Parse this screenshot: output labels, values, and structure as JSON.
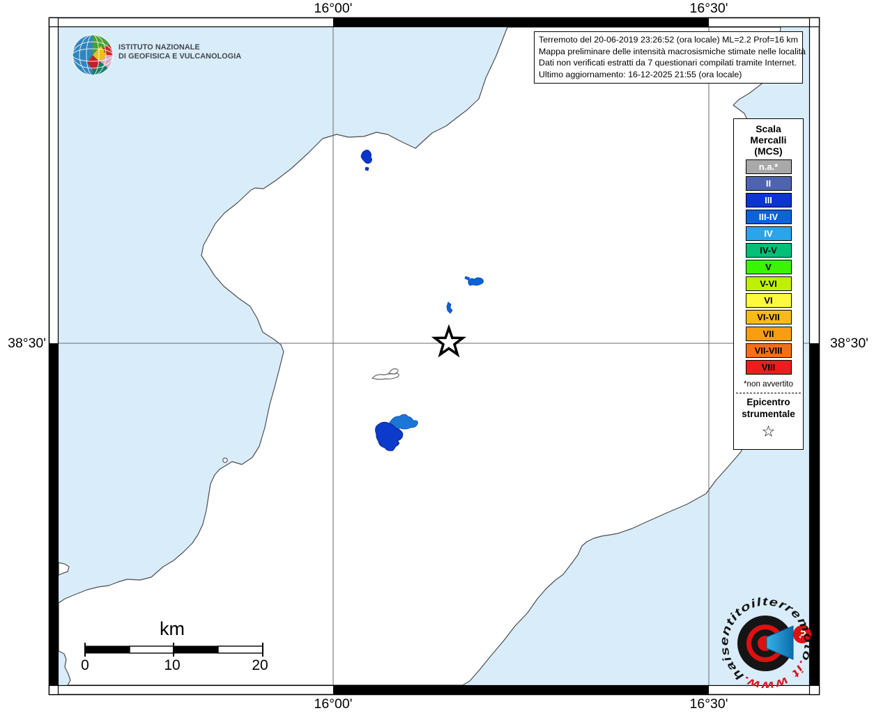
{
  "info_box": {
    "lines": [
      "Terremoto del 20-06-2019 23:26:52 (ora locale) ML=2.2 Prof=16 km",
      "Mappa preliminare delle intensità macrosismiche stimate nelle località",
      "Dati non verificati estratti da 7 questionari compilati tramite Internet.",
      "Ultimo aggiornamento: 16-12-2025 21:55 (ora locale)"
    ]
  },
  "axis_labels": {
    "top_left": "16°00'",
    "top_right": "16°30'",
    "bottom_left": "16°00'",
    "bottom_right": "16°30'",
    "left": "38°30'",
    "right": "38°30'"
  },
  "ingv_logo": {
    "line1": "ISTITUTO NAZIONALE",
    "line2": "DI GEOFISICA E VULCANOLOGIA"
  },
  "legend": {
    "title_lines": [
      "Scala",
      "Mercalli",
      "(MCS)"
    ],
    "items": [
      {
        "label": "n.a.*",
        "color": "#a9a9a9",
        "text": "#ffffff"
      },
      {
        "label": "II",
        "color": "#4e64ad",
        "text": "#ffffff"
      },
      {
        "label": "III",
        "color": "#0b35cf",
        "text": "#ffffff"
      },
      {
        "label": "III-IV",
        "color": "#0b62d9",
        "text": "#ffffff"
      },
      {
        "label": "IV",
        "color": "#2aa5ec",
        "text": "#ffffff"
      },
      {
        "label": "IV-V",
        "color": "#00bf77",
        "text": "#000000"
      },
      {
        "label": "V",
        "color": "#3bf400",
        "text": "#000000"
      },
      {
        "label": "V-VI",
        "color": "#bff000",
        "text": "#000000"
      },
      {
        "label": "VI",
        "color": "#fdf93c",
        "text": "#000000"
      },
      {
        "label": "VI-VII",
        "color": "#f6bb17",
        "text": "#000000"
      },
      {
        "label": "VII",
        "color": "#f99d10",
        "text": "#000000"
      },
      {
        "label": "VII-VIII",
        "color": "#f3701b",
        "text": "#000000"
      },
      {
        "label": "VIII",
        "color": "#ee1d1d",
        "text": "#000000"
      }
    ],
    "footnote": "*non avvertito",
    "epicenter_title_lines": [
      "Epicentro",
      "strumentale"
    ],
    "epicenter_symbol": "☆"
  },
  "scale_bar": {
    "unit": "km",
    "tick_labels": [
      "0",
      "10",
      "20"
    ]
  },
  "watermark": {
    "www": "www.",
    "mid": "haisentito",
    "il": "il",
    "main": "terremoto",
    "tld": ".it",
    "question": "?"
  },
  "map": {
    "sea_color": "#d9ecfa",
    "land_color": "#ffffff",
    "coast_color": "#4d4d4d",
    "grid_color": "#6a6a6a",
    "epicenter_marker": "open-star",
    "localities": [
      {
        "intensity": "III",
        "color": "#0b35cf"
      },
      {
        "intensity": "III-IV",
        "color": "#0b62d9"
      },
      {
        "intensity": "III-IV",
        "color": "#0b62d9"
      },
      {
        "intensity": "n.a.",
        "color": "outline-only"
      },
      {
        "intensity": "III",
        "color": "#0c3acb"
      },
      {
        "intensity": "III-IV",
        "color": "#1b76d6"
      }
    ]
  }
}
